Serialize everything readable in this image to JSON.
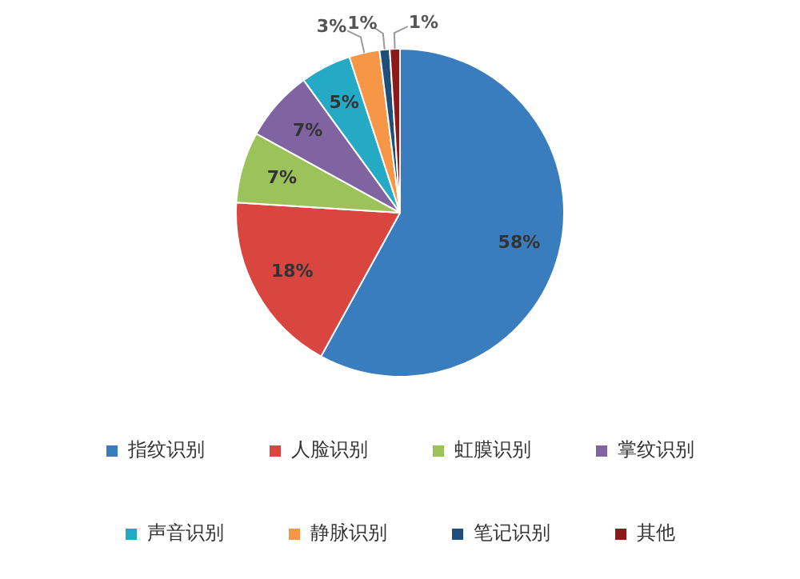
{
  "chart_data": {
    "type": "pie",
    "categories": [
      "指纹识别",
      "人脸识别",
      "虹膜识别",
      "掌纹识别",
      "声音识别",
      "静脉识别",
      "笔记识别",
      "其他"
    ],
    "values": [
      58,
      18,
      7,
      7,
      5,
      3,
      1,
      1
    ],
    "colors": [
      "#3a7dbf",
      "#d9453f",
      "#9bc35a",
      "#8064a2",
      "#25aac6",
      "#f79646",
      "#1f4e79",
      "#8b1a1a"
    ],
    "value_labels": [
      "58%",
      "18%",
      "7%",
      "7%",
      "5%",
      "3%",
      "1%",
      "1%"
    ],
    "legend": "bottom"
  }
}
